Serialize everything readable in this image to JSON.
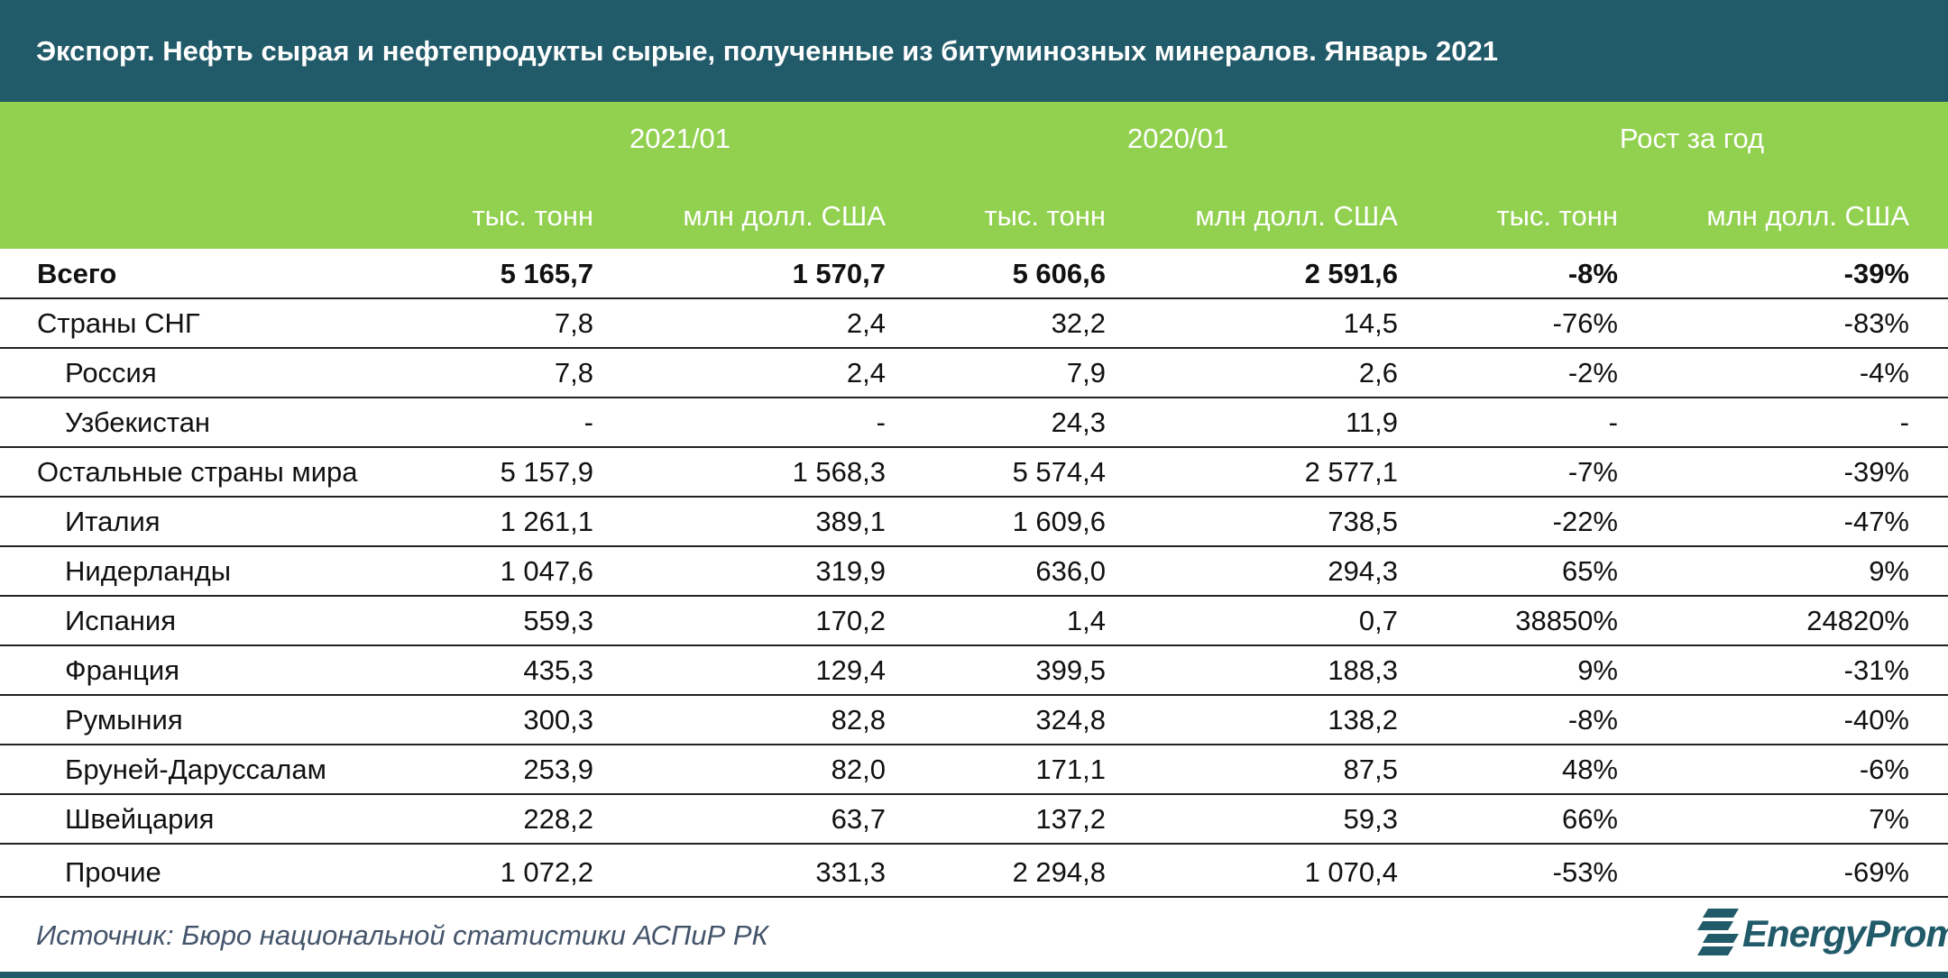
{
  "header": {
    "title": "Экспорт. Нефть сырая и нефтепродукты сырые, полученные из битуминозных минералов. Январь 2021"
  },
  "table": {
    "groups": [
      "2021/01",
      "2020/01",
      "Рост за год"
    ],
    "columns": [
      "тыс. тонн",
      "млн долл. США",
      "тыс. тонн",
      "млн долл. США",
      "тыс. тонн",
      "млн долл. США"
    ],
    "rows": [
      [
        "Всего",
        "5 165,7",
        "1 570,7",
        "5 606,6",
        "2 591,6",
        "-8%",
        "-39%"
      ],
      [
        "Страны СНГ",
        "7,8",
        "2,4",
        "32,2",
        "14,5",
        "-76%",
        "-83%"
      ],
      [
        "Россия",
        "7,8",
        "2,4",
        "7,9",
        "2,6",
        "-2%",
        "-4%"
      ],
      [
        "Узбекистан",
        "-",
        "-",
        "24,3",
        "11,9",
        "-",
        "-"
      ],
      [
        "Остальные страны мира",
        "5 157,9",
        "1 568,3",
        "5 574,4",
        "2 577,1",
        "-7%",
        "-39%"
      ],
      [
        "Италия",
        "1 261,1",
        "389,1",
        "1 609,6",
        "738,5",
        "-22%",
        "-47%"
      ],
      [
        "Нидерланды",
        "1 047,6",
        "319,9",
        "636,0",
        "294,3",
        "65%",
        "9%"
      ],
      [
        "Испания",
        "559,3",
        "170,2",
        "1,4",
        "0,7",
        "38850%",
        "24820%"
      ],
      [
        "Франция",
        "435,3",
        "129,4",
        "399,5",
        "188,3",
        "9%",
        "-31%"
      ],
      [
        "Румыния",
        "300,3",
        "82,8",
        "324,8",
        "138,2",
        "-8%",
        "-40%"
      ],
      [
        "Бруней-Даруссалам",
        "253,9",
        "82,0",
        "171,1",
        "87,5",
        "48%",
        "-6%"
      ],
      [
        "Швейцария",
        "228,2",
        "63,7",
        "137,2",
        "59,3",
        "66%",
        "7%"
      ],
      [
        "Прочие",
        "1 072,2",
        "331,3",
        "2 294,8",
        "1 070,4",
        "-53%",
        "-69%"
      ]
    ]
  },
  "footer": {
    "source": "Источник: Бюро национальной статистики АСПиР РК",
    "logo": "EnergyProm"
  }
}
